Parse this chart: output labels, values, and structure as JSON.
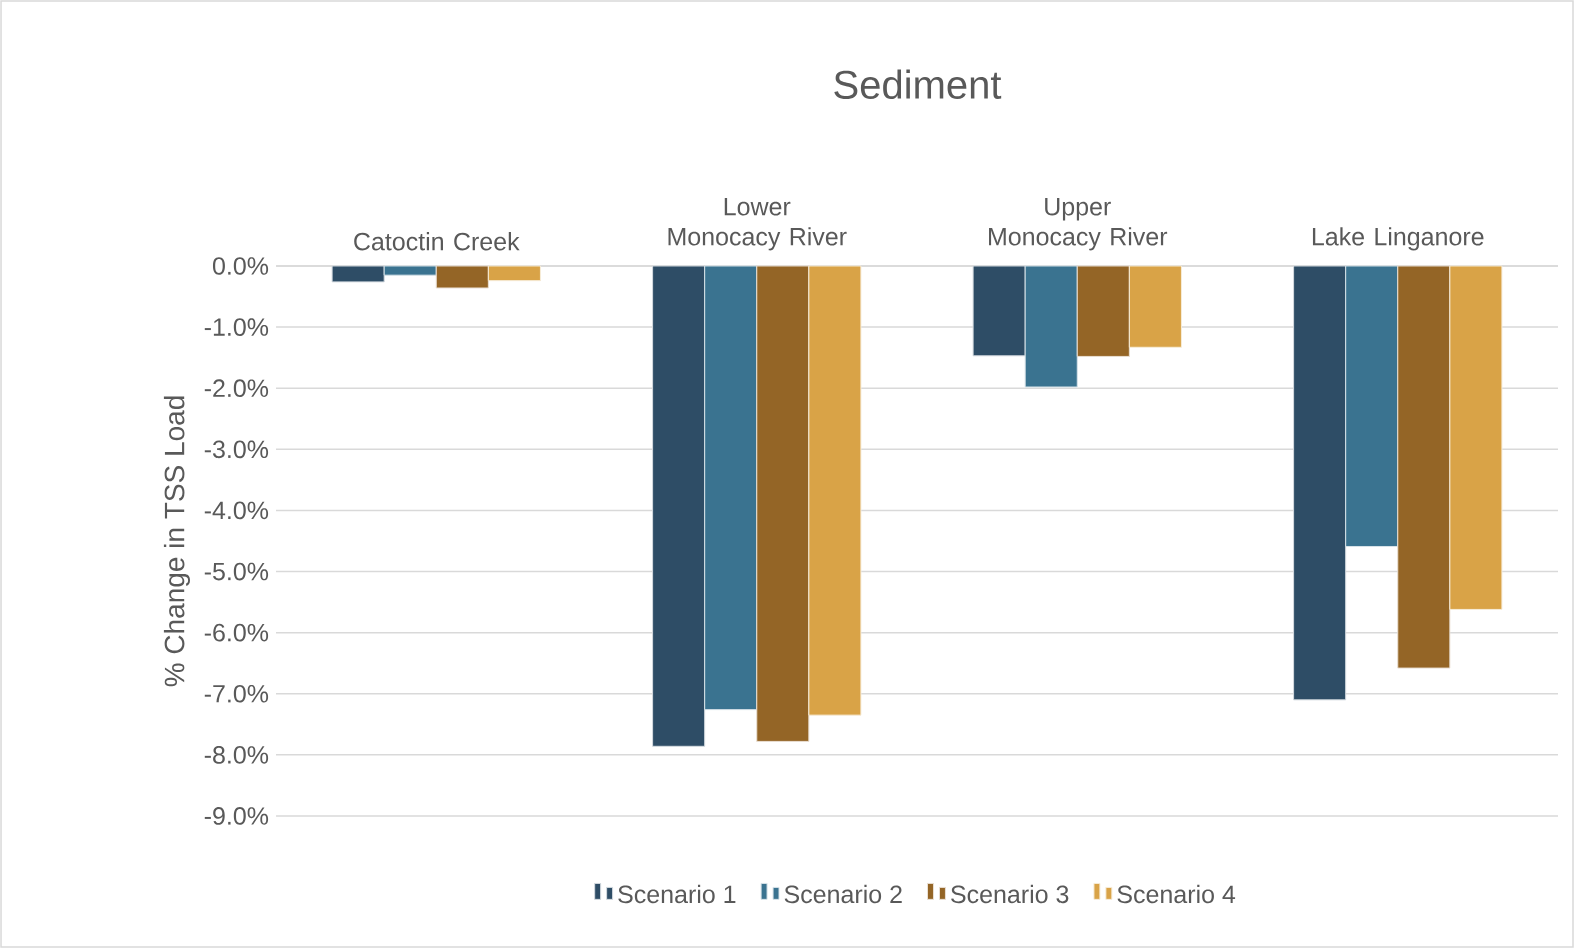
{
  "chart_data": {
    "type": "bar",
    "title": "Sediment",
    "ylabel": "% Change in TSS Load",
    "categories": [
      "Catoctin Creek",
      "Lower Monocacy River",
      "Upper Monocacy River",
      "Lake Linganore"
    ],
    "series": [
      {
        "name": "Scenario 1",
        "color": "#2e4d66",
        "values": [
          -0.26,
          -7.86,
          -1.47,
          -7.1
        ]
      },
      {
        "name": "Scenario 2",
        "color": "#3a7390",
        "values": [
          -0.15,
          -7.26,
          -1.98,
          -4.59
        ]
      },
      {
        "name": "Scenario 3",
        "color": "#946526",
        "values": [
          -0.36,
          -7.78,
          -1.48,
          -6.58
        ]
      },
      {
        "name": "Scenario 4",
        "color": "#d9a347",
        "values": [
          -0.24,
          -7.35,
          -1.33,
          -5.62
        ]
      }
    ],
    "ylim": [
      -9,
      0
    ],
    "yticks": [
      {
        "value": 0,
        "label": "0.0%"
      },
      {
        "value": -1,
        "label": "-1.0%"
      },
      {
        "value": -2,
        "label": "-2.0%"
      },
      {
        "value": -3,
        "label": "-3.0%"
      },
      {
        "value": -4,
        "label": "-4.0%"
      },
      {
        "value": -5,
        "label": "-5.0%"
      },
      {
        "value": -6,
        "label": "-6.0%"
      },
      {
        "value": -7,
        "label": "-7.0%"
      },
      {
        "value": -8,
        "label": "-8.0%"
      },
      {
        "value": -9,
        "label": "-9.0%"
      }
    ],
    "grid": "y",
    "legend": "bottom"
  }
}
